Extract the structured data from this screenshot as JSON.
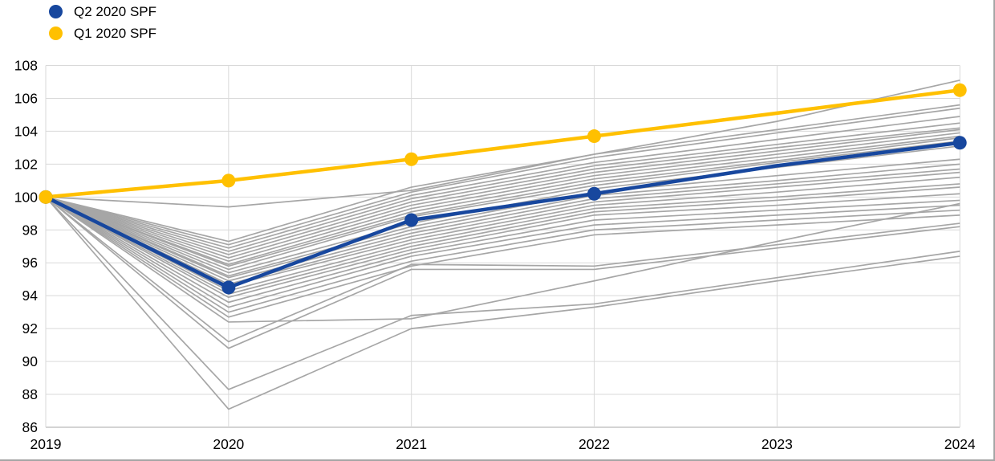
{
  "legend": {
    "items": [
      {
        "label": "Q2 2020 SPF",
        "color": "#17479E"
      },
      {
        "label": "Q1 2020 SPF",
        "color": "#FFC000"
      }
    ]
  },
  "colors": {
    "q2_blue": "#17479E",
    "q1_yellow": "#FFC000",
    "forecaster_gray": "#A6A6A6",
    "gridline": "#D9D9D9",
    "axis": "#C6C6C6",
    "frame_border": "#A6A6A6",
    "text": "#000000"
  },
  "chart_data": {
    "type": "line",
    "title": "",
    "xlabel": "",
    "ylabel": "",
    "x": [
      2019,
      2020,
      2021,
      2022,
      2023,
      2024
    ],
    "x_tick_labels": [
      "2019",
      "2020",
      "2021",
      "2022",
      "2023",
      "2024"
    ],
    "y_ticks": [
      86,
      88,
      90,
      92,
      94,
      96,
      98,
      100,
      102,
      104,
      106,
      108
    ],
    "ylim": [
      86,
      108
    ],
    "xlim": [
      2019,
      2024
    ],
    "grid": "horizontal-and-vertical-light-gray",
    "legend_position": "top-left",
    "index_base": "2019 = 100",
    "series": [
      {
        "name": "Q2 2020 SPF",
        "color": "#17479E",
        "line_width": 4.5,
        "marker": "circle",
        "marker_years": [
          2019,
          2020,
          2021,
          2022,
          2024
        ],
        "values": [
          100,
          94.5,
          98.6,
          100.2,
          101.9,
          103.3
        ]
      },
      {
        "name": "Q1 2020 SPF",
        "color": "#FFC000",
        "line_width": 4.5,
        "marker": "circle",
        "marker_years": [
          2019,
          2020,
          2021,
          2022,
          2024
        ],
        "values": [
          100,
          101.0,
          102.3,
          103.7,
          105.1,
          106.5
        ]
      }
    ],
    "background_series": {
      "name": "individual-forecaster-paths",
      "color": "#A6A6A6",
      "line_width": 1.7,
      "values": [
        [
          100,
          99.4,
          100.4,
          102.6,
          104.6,
          107.1
        ],
        [
          100,
          97.3,
          100.6,
          102.6,
          104.1,
          105.6
        ],
        [
          100,
          97.1,
          100.3,
          102.4,
          103.9,
          105.4
        ],
        [
          100,
          96.9,
          100.1,
          102.1,
          103.5,
          104.9
        ],
        [
          100,
          96.7,
          99.9,
          101.9,
          103.2,
          104.5
        ],
        [
          100,
          96.5,
          99.7,
          101.7,
          103.0,
          104.2
        ],
        [
          100,
          96.3,
          99.5,
          101.5,
          102.8,
          104.1
        ],
        [
          100,
          96.1,
          99.3,
          101.3,
          102.6,
          103.9
        ],
        [
          100,
          95.9,
          99.1,
          101.1,
          102.4,
          103.7
        ],
        [
          100,
          95.8,
          98.9,
          100.9,
          102.2,
          103.6
        ],
        [
          100,
          95.6,
          98.8,
          100.7,
          102.1,
          103.4
        ],
        [
          100,
          95.4,
          98.4,
          100.5,
          101.8,
          103.1
        ],
        [
          100,
          95.2,
          98.2,
          100.3,
          101.3,
          102.3
        ],
        [
          100,
          95.1,
          98.0,
          100.1,
          101.0,
          102.0
        ],
        [
          100,
          94.9,
          97.8,
          99.9,
          100.8,
          101.7
        ],
        [
          100,
          94.7,
          97.6,
          99.7,
          100.6,
          101.5
        ],
        [
          100,
          94.6,
          97.4,
          99.5,
          100.3,
          101.2
        ],
        [
          100,
          94.3,
          97.2,
          99.3,
          100.0,
          100.8
        ],
        [
          100,
          94.1,
          97.0,
          99.1,
          99.8,
          100.6
        ],
        [
          100,
          93.9,
          96.8,
          98.9,
          99.5,
          100.2
        ],
        [
          100,
          93.6,
          96.6,
          98.6,
          99.2,
          99.8
        ],
        [
          100,
          93.3,
          96.4,
          98.3,
          98.9,
          99.5
        ],
        [
          100,
          93.0,
          96.1,
          98.0,
          98.6,
          99.2
        ],
        [
          100,
          92.7,
          95.8,
          97.7,
          98.3,
          98.9
        ],
        [
          100,
          91.2,
          95.9,
          95.8,
          97.1,
          98.4
        ],
        [
          100,
          90.8,
          95.6,
          95.6,
          96.9,
          98.2
        ],
        [
          100,
          92.4,
          92.6,
          94.9,
          97.3,
          99.6
        ],
        [
          100,
          88.3,
          92.8,
          93.5,
          95.1,
          96.7
        ],
        [
          100,
          87.1,
          92.0,
          93.3,
          94.9,
          96.4
        ]
      ]
    }
  }
}
